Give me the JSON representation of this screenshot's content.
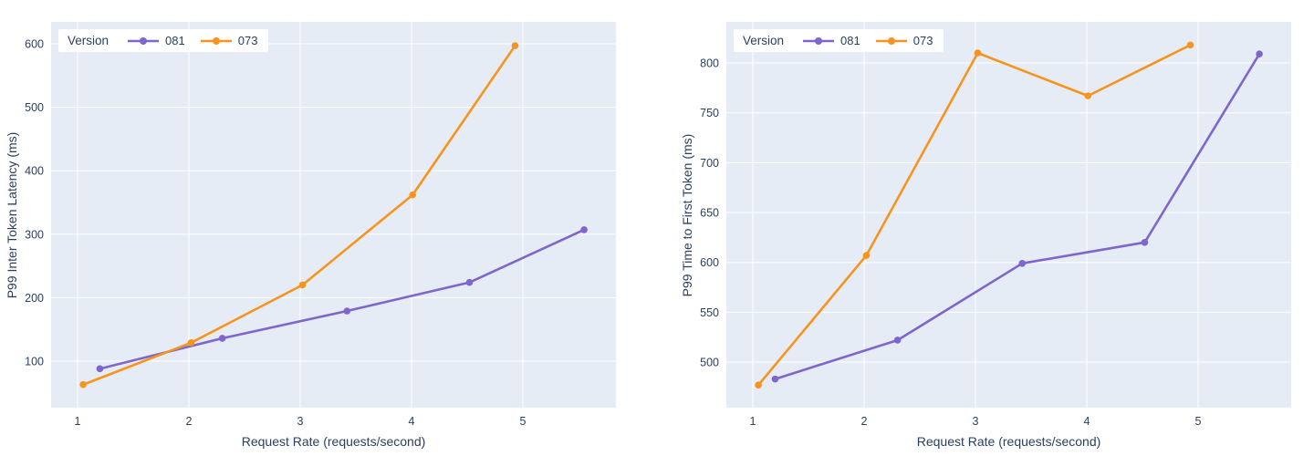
{
  "colors": {
    "plot_bg": "#e5ecf6",
    "grid": "#ffffff",
    "text": "#2a3f5f",
    "series_081": "#7e66cc",
    "series_073": "#f7941d",
    "legend_bg": "#ffffff"
  },
  "legend": {
    "title": "Version",
    "items": [
      {
        "label": "081",
        "color": "#7e66cc"
      },
      {
        "label": "073",
        "color": "#f7941d"
      }
    ]
  },
  "chart_data": [
    {
      "type": "line",
      "title": "",
      "xlabel": "Request Rate (requests/second)",
      "ylabel": "P99 Inter Token Latency (ms)",
      "xlim": [
        0.762,
        5.836
      ],
      "ylim": [
        26.7,
        634.5
      ],
      "xticks": [
        1,
        2,
        3,
        4,
        5
      ],
      "yticks": [
        100,
        200,
        300,
        400,
        500,
        600
      ],
      "grid": true,
      "legend_position": "top-left-inside",
      "series": [
        {
          "name": "081",
          "color": "#7e66cc",
          "x": [
            1.2,
            2.3,
            3.42,
            4.52,
            5.55
          ],
          "y": [
            88,
            136,
            179,
            224,
            307
          ]
        },
        {
          "name": "073",
          "color": "#f7941d",
          "x": [
            1.05,
            2.02,
            3.02,
            4.01,
            4.93
          ],
          "y": [
            63,
            129,
            220,
            362,
            597
          ]
        }
      ]
    },
    {
      "type": "line",
      "title": "",
      "xlabel": "Request Rate (requests/second)",
      "ylabel": "P99 Time to First Token (ms)",
      "xlim": [
        0.762,
        5.836
      ],
      "ylim": [
        454.3,
        841.2
      ],
      "xticks": [
        1,
        2,
        3,
        4,
        5
      ],
      "yticks": [
        500,
        550,
        600,
        650,
        700,
        750,
        800
      ],
      "grid": true,
      "legend_position": "top-left-inside",
      "series": [
        {
          "name": "081",
          "color": "#7e66cc",
          "x": [
            1.2,
            2.3,
            3.42,
            4.52,
            5.55
          ],
          "y": [
            483,
            522,
            599,
            620,
            809
          ]
        },
        {
          "name": "073",
          "color": "#f7941d",
          "x": [
            1.05,
            2.02,
            3.02,
            4.01,
            4.93
          ],
          "y": [
            477,
            607,
            810,
            767,
            818
          ]
        }
      ]
    }
  ]
}
